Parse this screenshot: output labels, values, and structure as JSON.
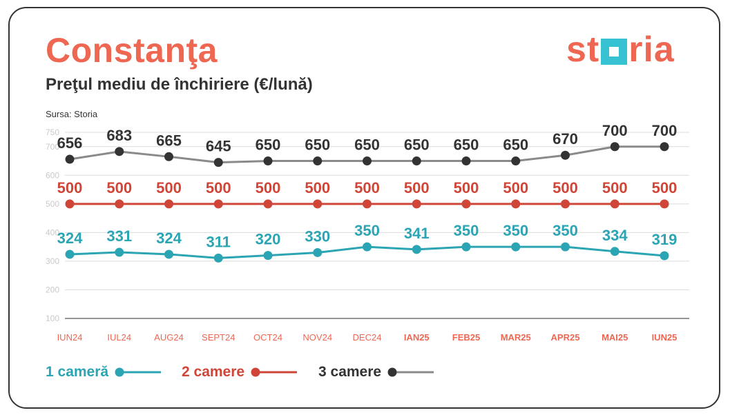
{
  "header": {
    "title": "Constanţa",
    "subtitle": "Preţul mediu de închiriere (€/lună)",
    "source": "Sursa: Storia",
    "logo_text": "storia"
  },
  "colors": {
    "accent": "#ee6752",
    "teal": "#2ba5b3",
    "red": "#cf4638",
    "dark": "#333333",
    "grey_line": "#8a8a8a",
    "grid": "#dcdcdc",
    "axis_label": "#c9c9c9"
  },
  "chart_data": {
    "type": "line",
    "title": "Preţul mediu de închiriere (€/lună)",
    "xlabel": "",
    "ylabel": "",
    "ylim": [
      100,
      750
    ],
    "yticks": [
      100,
      200,
      300,
      400,
      500,
      600,
      700,
      750
    ],
    "grid": true,
    "legend_placement": "bottom-left",
    "categories": [
      "IUN24",
      "IUL24",
      "AUG24",
      "SEPT24",
      "OCT24",
      "NOV24",
      "DEC24",
      "IAN25",
      "FEB25",
      "MAR25",
      "APR25",
      "MAI25",
      "IUN25"
    ],
    "bold_categories": [
      "IAN25",
      "FEB25",
      "MAR25",
      "APR25",
      "MAI25",
      "IUN25"
    ],
    "series": [
      {
        "name": "1 cameră",
        "values": [
          324,
          331,
          324,
          311,
          320,
          330,
          350,
          341,
          350,
          350,
          350,
          334,
          319
        ]
      },
      {
        "name": "2 camere",
        "values": [
          500,
          500,
          500,
          500,
          500,
          500,
          500,
          500,
          500,
          500,
          500,
          500,
          500
        ]
      },
      {
        "name": "3 camere",
        "values": [
          656,
          683,
          665,
          645,
          650,
          650,
          650,
          650,
          650,
          650,
          670,
          700,
          700
        ]
      }
    ]
  }
}
